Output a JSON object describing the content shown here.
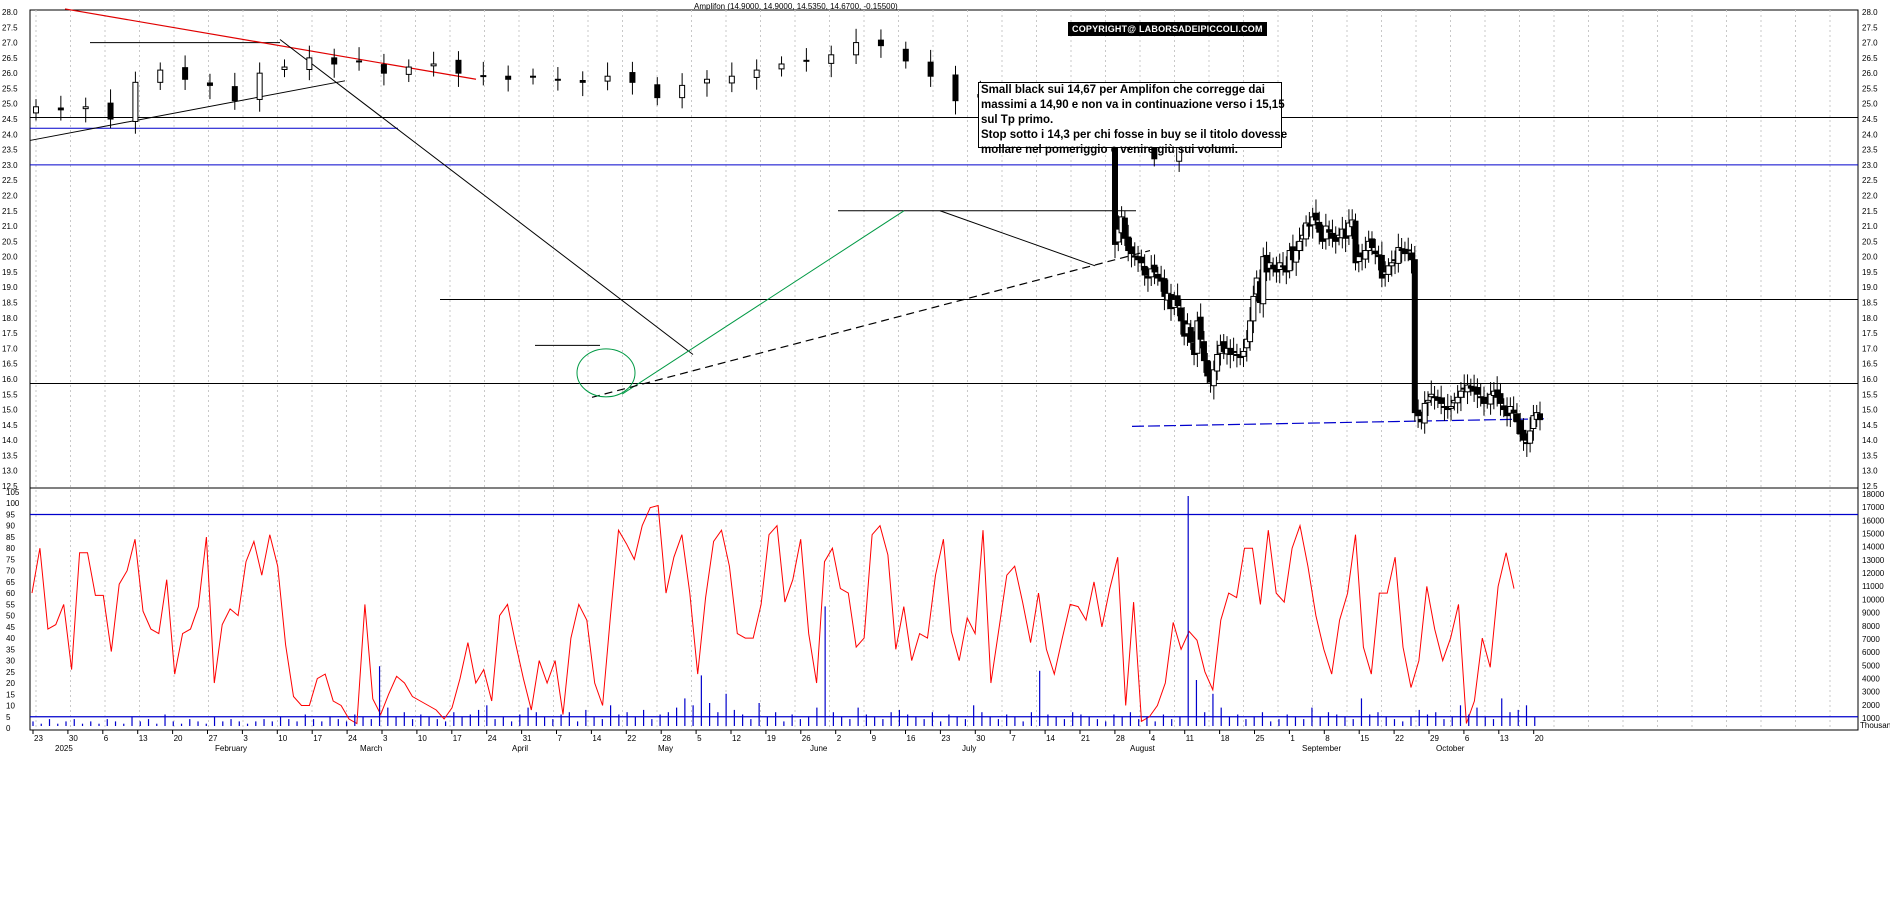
{
  "header": "Amplifon (14.9000, 14.9000, 14.5350, 14.6700, -0.15500)",
  "copyright": "COPYRIGHT@ LABORSADEIPICCOLI.COM",
  "comment": [
    "Small black sui 14,67 per Amplifon che corregge dai",
    "massimi a 14,90 e non va in continuazione verso i 15,15",
    "sul Tp primo.",
    "Stop sotto i 14,3 per chi fosse in buy se il titolo dovesse",
    "mollare nel pomeriggio e venire giù sui volumi."
  ],
  "colors": {
    "trend_red": "#e00000",
    "blue": "#0000cc",
    "green": "#009944",
    "osc": "#ff0000",
    "volume": "#0000cc"
  },
  "chart_data": [
    {
      "type": "candlestick",
      "name": "price",
      "ylim": [
        12.5,
        28.0
      ],
      "y_ticks": [
        "12.5",
        "13.0",
        "13.5",
        "14.0",
        "14.5",
        "15.0",
        "15.5",
        "16.0",
        "16.5",
        "17.0",
        "17.5",
        "18.0",
        "18.5",
        "19.0",
        "19.5",
        "20.0",
        "20.5",
        "21.0",
        "21.5",
        "22.0",
        "22.5",
        "23.0",
        "23.5",
        "24.0",
        "24.5",
        "25.0",
        "25.5",
        "26.0",
        "26.5",
        "27.0",
        "27.5",
        "28.0"
      ],
      "x_tick_labels": [
        "23",
        "30",
        "6",
        "13",
        "20",
        "27",
        "3",
        "10",
        "17",
        "24",
        "3",
        "10",
        "17",
        "24",
        "31",
        "7",
        "14",
        "22",
        "28",
        "5",
        "12",
        "19",
        "26",
        "2",
        "9",
        "16",
        "23",
        "30",
        "7",
        "14",
        "21",
        "28",
        "4",
        "11",
        "18",
        "25",
        "1",
        "8",
        "15",
        "22",
        "29",
        "6",
        "13",
        "20"
      ],
      "month_labels": [
        "2025",
        "February",
        "March",
        "April",
        "May",
        "June",
        "July",
        "August",
        "September",
        "October"
      ],
      "series_close": [
        24.9,
        24.8,
        24.9,
        24.5,
        25.7,
        26.1,
        25.8,
        25.6,
        25.1,
        26.0,
        26.2,
        26.5,
        26.3,
        26.4,
        26.0,
        26.2,
        26.3,
        26.0,
        25.9,
        25.8,
        25.9,
        25.8,
        25.7,
        25.9,
        25.7,
        25.2,
        25.6,
        25.8,
        25.9,
        26.1,
        26.3,
        26.4,
        26.6,
        27.0,
        26.9,
        26.4,
        25.9,
        25.1,
        25.3,
        25.2,
        24.9,
        24.7,
        24.4,
        24.2,
        23.9,
        23.2,
        24.2,
        20.4,
        20.9,
        21.3,
        20.6,
        20.2,
        20.1,
        20.0,
        19.9,
        19.8,
        19.4,
        19.3,
        19.6,
        19.5,
        19.3,
        19.2,
        18.7,
        18.8,
        18.3,
        18.6,
        18.4,
        17.9,
        17.4,
        17.8,
        17.2,
        16.8,
        17.9,
        17.3,
        16.6,
        16.1,
        15.9,
        16.3,
        16.8,
        17.1,
        16.9,
        17.0,
        16.8,
        16.9,
        16.8,
        16.7,
        16.9,
        17.3,
        17.9,
        18.7,
        19.3,
        18.5,
        20.0,
        19.5,
        19.8,
        19.6,
        19.5,
        19.8,
        19.7,
        19.5,
        20.2,
        19.9,
        20.2,
        20.5,
        20.7,
        21.1,
        21.0,
        21.3,
        21.2,
        20.8,
        20.5,
        21.0,
        20.8,
        20.6,
        20.5,
        20.7,
        20.9,
        20.6,
        21.1,
        21.2,
        19.8,
        20.0,
        20.0,
        20.2,
        20.5,
        20.3,
        20.1,
        20.0,
        19.3,
        19.5,
        19.7,
        19.8,
        19.9,
        20.3,
        20.2,
        20.1,
        20.2,
        19.9,
        14.9,
        14.8,
        14.6,
        15.2,
        15.3,
        15.5,
        15.4,
        15.3,
        15.2,
        15.1,
        15.0,
        15.1,
        15.3,
        15.4,
        15.6,
        15.7,
        15.8,
        15.7,
        15.6,
        15.5,
        15.4,
        15.2,
        15.3,
        15.5,
        15.6,
        15.4,
        15.2,
        15.0,
        14.8,
        15.1,
        14.9,
        14.6,
        14.2,
        14.0,
        13.9,
        14.3,
        14.8,
        14.9,
        14.67
      ],
      "annotations": [
        "resistance 27.0",
        "support 24.2",
        "23.0",
        "16.0",
        "18.6",
        "21.5",
        "trend lines"
      ]
    },
    {
      "type": "line",
      "name": "oscillator",
      "ylim": [
        0,
        105
      ],
      "y_ticks": [
        "0",
        "5",
        "10",
        "15",
        "20",
        "25",
        "30",
        "35",
        "40",
        "45",
        "50",
        "55",
        "60",
        "65",
        "70",
        "75",
        "80",
        "85",
        "90",
        "95",
        "100",
        "105"
      ],
      "levels": [
        95,
        5
      ],
      "values": [
        60,
        80,
        44,
        46,
        55,
        26,
        78,
        78,
        59,
        59,
        34,
        64,
        70,
        84,
        52,
        44,
        42,
        66,
        24,
        42,
        44,
        54,
        85,
        20,
        46,
        53,
        50,
        74,
        83,
        68,
        86,
        72,
        37,
        14,
        10,
        10,
        22,
        24,
        12,
        10,
        4,
        2,
        55,
        13,
        6,
        15,
        23,
        20,
        14,
        12,
        10,
        8,
        4,
        9,
        22,
        38,
        20,
        26,
        12,
        50,
        55,
        38,
        22,
        8,
        30,
        20,
        30,
        6,
        40,
        55,
        48,
        20,
        10,
        50,
        88,
        82,
        75,
        90,
        98,
        99,
        60,
        76,
        86,
        60,
        24,
        58,
        83,
        88,
        72,
        42,
        40,
        40,
        55,
        86,
        90,
        56,
        66,
        84,
        42,
        20,
        74,
        80,
        62,
        60,
        36,
        40,
        86,
        90,
        77,
        35,
        54,
        30,
        42,
        40,
        68,
        84,
        43,
        30,
        49,
        42,
        88,
        20,
        44,
        68,
        72,
        56,
        38,
        60,
        35,
        24,
        40,
        55,
        54,
        48,
        65,
        45,
        62,
        76,
        10,
        56,
        3,
        5,
        10,
        20,
        47,
        35,
        43,
        39,
        25,
        17,
        48,
        60,
        58,
        80,
        80,
        55,
        88,
        60,
        56,
        80,
        90,
        72,
        50,
        35,
        24,
        48,
        60,
        86,
        36,
        24,
        60,
        60,
        76,
        36,
        18,
        30,
        63,
        44,
        30,
        40,
        55,
        2,
        12,
        40,
        27,
        63,
        78,
        62
      ],
      "volume_axis": [
        "1000",
        "2000",
        "3000",
        "4000",
        "5000",
        "6000",
        "7000",
        "8000",
        "9000",
        "10000",
        "11000",
        "12000",
        "13000",
        "14000",
        "15000",
        "16000",
        "17000",
        "18000"
      ],
      "volume_units": "Thousands"
    }
  ]
}
